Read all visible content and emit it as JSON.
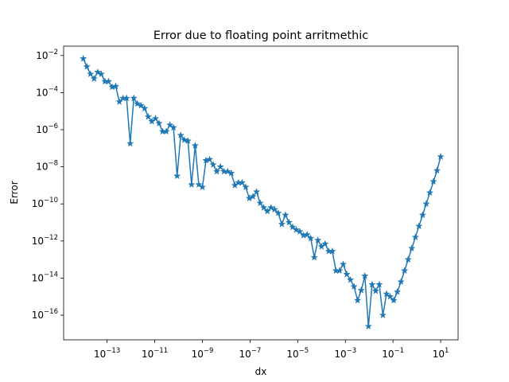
{
  "chart_data": {
    "type": "line",
    "title": "Error due to floating point arritmethic",
    "x_label": "dx",
    "y_label": "Error",
    "xscale": "log",
    "yscale": "log",
    "marker": "star",
    "xlim": [
      1.5e-15,
      54
    ],
    "ylim": [
      4.7e-18,
      0.032
    ],
    "xticks": [
      {
        "value": 1e-13,
        "label": "10−13"
      },
      {
        "value": 1e-11,
        "label": "10−11"
      },
      {
        "value": 1e-09,
        "label": "10−9"
      },
      {
        "value": 1e-07,
        "label": "10−7"
      },
      {
        "value": 1e-05,
        "label": "10−5"
      },
      {
        "value": 0.001,
        "label": "10−3"
      },
      {
        "value": 0.1,
        "label": "10−1"
      },
      {
        "value": 10,
        "label": "101"
      }
    ],
    "yticks": [
      {
        "value": 0.01,
        "label": "10−2"
      },
      {
        "value": 0.0001,
        "label": "10−4"
      },
      {
        "value": 1e-06,
        "label": "10−6"
      },
      {
        "value": 1e-08,
        "label": "10−8"
      },
      {
        "value": 1e-10,
        "label": "10−10"
      },
      {
        "value": 1e-12,
        "label": "10−12"
      },
      {
        "value": 1e-14,
        "label": "10−14"
      },
      {
        "value": 1e-16,
        "label": "10−16"
      }
    ],
    "x": [
      1e-14,
      1.417e-14,
      2.009e-14,
      2.848e-14,
      4.037e-14,
      5.722e-14,
      8.111e-14,
      1.15e-13,
      1.63e-13,
      2.31e-13,
      3.275e-13,
      4.642e-13,
      6.579e-13,
      9.326e-13,
      1.322e-12,
      1.874e-12,
      2.656e-12,
      3.765e-12,
      5.337e-12,
      7.565e-12,
      1.072e-11,
      1.52e-11,
      2.154e-11,
      3.054e-11,
      4.329e-11,
      6.136e-11,
      8.697e-11,
      1.233e-10,
      1.748e-10,
      2.477e-10,
      3.511e-10,
      4.977e-10,
      7.055e-10,
      1e-09,
      1.417e-09,
      2.009e-09,
      2.848e-09,
      4.037e-09,
      5.722e-09,
      8.111e-09,
      1.15e-08,
      1.63e-08,
      2.31e-08,
      3.275e-08,
      4.642e-08,
      6.579e-08,
      9.326e-08,
      1.322e-07,
      1.874e-07,
      2.656e-07,
      3.765e-07,
      5.337e-07,
      7.565e-07,
      1.072e-06,
      1.52e-06,
      2.154e-06,
      3.054e-06,
      4.329e-06,
      6.136e-06,
      8.697e-06,
      1.233e-05,
      1.748e-05,
      2.477e-05,
      3.511e-05,
      4.977e-05,
      7.055e-05,
      0.0001,
      0.0001417,
      0.0002009,
      0.0002848,
      0.0004037,
      0.0005722,
      0.0008111,
      0.00115,
      0.00163,
      0.00231,
      0.003275,
      0.004642,
      0.006579,
      0.009326,
      0.01322,
      0.01874,
      0.02656,
      0.03765,
      0.05337,
      0.07565,
      0.1072,
      0.152,
      0.2154,
      0.3054,
      0.4329,
      0.6136,
      0.8697,
      1.233,
      1.748,
      2.477,
      3.511,
      4.977,
      7.055,
      10
    ],
    "series": [
      {
        "color": "#1f77b4",
        "values": [
          0.00676,
          0.0025,
          0.001,
          0.00056,
          0.00126,
          0.001,
          0.0004,
          0.0004,
          0.0002,
          0.00022,
          3.2e-05,
          5e-05,
          5e-05,
          1.8e-07,
          5e-05,
          2.5e-05,
          2e-05,
          1.4e-05,
          5e-06,
          2.8e-06,
          4e-06,
          2.2e-06,
          8e-07,
          8e-07,
          1.8e-06,
          1.3e-06,
          3.2e-09,
          5e-07,
          2.8e-07,
          2.5e-07,
          1.1e-09,
          1.4e-07,
          1.1e-09,
          8e-10,
          2.2e-08,
          2.5e-08,
          1.3e-08,
          5.6e-09,
          1e-08,
          5.6e-09,
          5.6e-09,
          4.5e-09,
          1e-09,
          1.4e-09,
          1.4e-09,
          8e-10,
          2e-10,
          2.5e-10,
          4.5e-10,
          1.1e-10,
          6.3e-11,
          4e-11,
          6.3e-11,
          5e-11,
          3.2e-11,
          8e-12,
          2.5e-11,
          1e-11,
          5.6e-12,
          4e-12,
          3.2e-12,
          2e-12,
          2.2e-12,
          1.4e-12,
          1.3e-13,
          1.1e-12,
          5e-13,
          7e-13,
          2.8e-13,
          2.8e-13,
          2.5e-14,
          2.5e-14,
          5.6e-14,
          1.6e-14,
          8e-15,
          3.5e-15,
          6.3e-16,
          2.2e-15,
          1.3e-14,
          2.5e-17,
          4.5e-15,
          2e-15,
          4.5e-15,
          1e-16,
          1.4e-15,
          1e-15,
          6.3e-16,
          1.8e-15,
          6.3e-15,
          2.5e-14,
          1e-13,
          4e-13,
          1.6e-12,
          6.3e-12,
          2.5e-11,
          1e-10,
          4e-10,
          1.6e-09,
          6.3e-09,
          3.5e-08
        ]
      }
    ]
  }
}
